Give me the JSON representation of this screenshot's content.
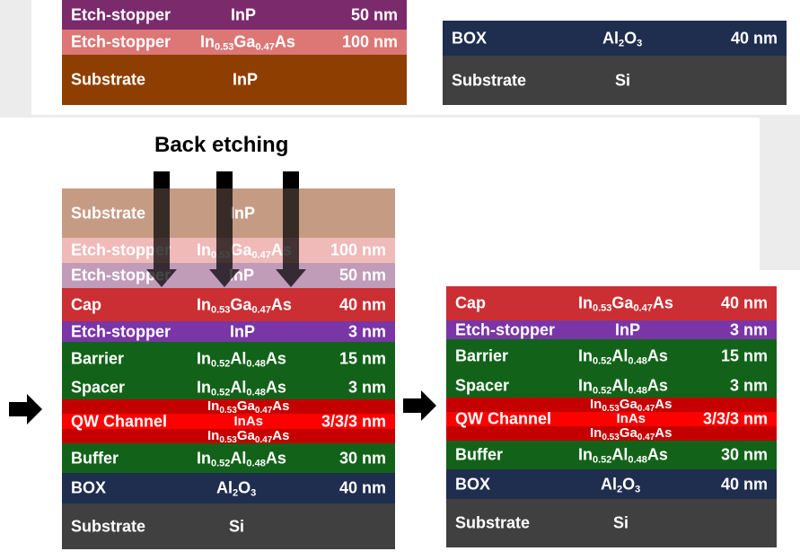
{
  "colors": {
    "page_background": "#ececec",
    "panel_background": "#ffffff",
    "inp_substrate": "#8e3f00",
    "inp_substrate_faded": "#c69b84",
    "etch_stopper_inp": "#7b2b6c",
    "etch_stopper_inp_faded": "#c09cb9",
    "etch_stopper_ingaas": "#dc7776",
    "etch_stopper_ingaas_faded": "#efbab8",
    "cap": "#cb2f33",
    "etch_stopper_thin": "#7a35a6",
    "barrier": "#126319",
    "qw_channel": "#fe0000",
    "qw_cladding": "#c40000",
    "box": "#1f2d4e",
    "si_substrate": "#404040",
    "arrow": "#000000"
  },
  "top_left_wafer": {
    "layers": [
      {
        "name": "Etch-stopper",
        "material": "InP",
        "thickness": "50 nm"
      },
      {
        "name": "Etch-stopper",
        "material": "In0.53Ga0.47As",
        "thickness": "100 nm"
      },
      {
        "name": "Substrate",
        "material": "InP",
        "thickness": ""
      }
    ]
  },
  "top_right_wafer": {
    "layers": [
      {
        "name": "BOX",
        "material": "Al2O3",
        "thickness": "40 nm"
      },
      {
        "name": "Substrate",
        "material": "Si",
        "thickness": ""
      }
    ]
  },
  "back_etching": {
    "title": "Back etching",
    "arrow_count": 3
  },
  "bonded_stack": {
    "layers": [
      {
        "name": "Substrate",
        "material": "InP",
        "thickness": ""
      },
      {
        "name": "Etch-stopper",
        "material": "In0.53Ga0.47As",
        "thickness": "100 nm"
      },
      {
        "name": "Etch-stopper",
        "material": "InP",
        "thickness": "50 nm"
      },
      {
        "name": "Cap",
        "material": "In0.53Ga0.47As",
        "thickness": "40 nm"
      },
      {
        "name": "Etch-stopper",
        "material": "InP",
        "thickness": "3 nm"
      },
      {
        "name": "Barrier",
        "material": "In0.52Al0.48As",
        "thickness": "15 nm"
      },
      {
        "name": "Spacer",
        "material": "In0.52Al0.48As",
        "thickness": "3 nm"
      },
      {
        "name": "QW Channel",
        "material": "In0.53Ga0.47As / InAs / In0.53Ga0.47As",
        "thickness": "3/3/3 nm"
      },
      {
        "name": "Buffer",
        "material": "In0.52Al0.48As",
        "thickness": "30 nm"
      },
      {
        "name": "BOX",
        "material": "Al2O3",
        "thickness": "40 nm"
      },
      {
        "name": "Substrate",
        "material": "Si",
        "thickness": ""
      }
    ]
  },
  "final_stack": {
    "layers": [
      {
        "name": "Cap",
        "material": "In0.53Ga0.47As",
        "thickness": "40 nm"
      },
      {
        "name": "Etch-stopper",
        "material": "InP",
        "thickness": "3 nm"
      },
      {
        "name": "Barrier",
        "material": "In0.52Al0.48As",
        "thickness": "15 nm"
      },
      {
        "name": "Spacer",
        "material": "In0.52Al0.48As",
        "thickness": "3 nm"
      },
      {
        "name": "QW Channel",
        "material": "In0.53Ga0.47As / InAs / In0.53Ga0.47As",
        "thickness": "3/3/3 nm"
      },
      {
        "name": "Buffer",
        "material": "In0.52Al0.48As",
        "thickness": "30 nm"
      },
      {
        "name": "BOX",
        "material": "Al2O3",
        "thickness": "40 nm"
      },
      {
        "name": "Substrate",
        "material": "Si",
        "thickness": ""
      }
    ]
  },
  "process_arrows": [
    "right-arrow-icon",
    "right-arrow-icon"
  ]
}
